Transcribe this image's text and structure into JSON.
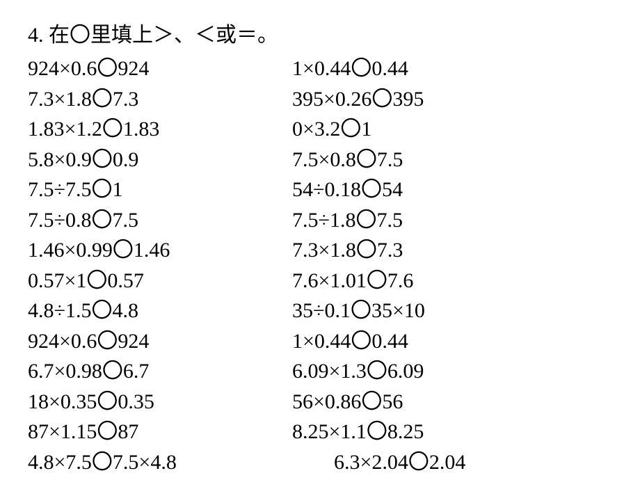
{
  "title": "4. 在〇里填上＞、＜或＝。",
  "circle_glyph": "〇",
  "text_color": "#000000",
  "background_color": "#ffffff",
  "font_family": "SimSun",
  "font_size_pt": 22,
  "rows": [
    {
      "left_a": "924×0.6",
      "left_b": "924",
      "right_a": "1×0.44",
      "right_b": "0.44"
    },
    {
      "left_a": "7.3×1.8",
      "left_b": "7.3",
      "right_a": "395×0.26",
      "right_b": "395"
    },
    {
      "left_a": "1.83×1.2",
      "left_b": "1.83",
      "right_a": "0×3.2",
      "right_b": "1"
    },
    {
      "left_a": "5.8×0.9",
      "left_b": "0.9",
      "right_a": "7.5×0.8",
      "right_b": "7.5"
    },
    {
      "left_a": "7.5÷7.5",
      "left_b": "1",
      "right_a": "54÷0.18",
      "right_b": "54"
    },
    {
      "left_a": "7.5÷0.8",
      "left_b": "7.5",
      "right_a": "7.5÷1.8",
      "right_b": "7.5"
    },
    {
      "left_a": "1.46×0.99",
      "left_b": "1.46",
      "right_a": "7.3×1.8",
      "right_b": "7.3"
    },
    {
      "left_a": "0.57×1",
      "left_b": "0.57",
      "right_a": "7.6×1.01",
      "right_b": "7.6"
    },
    {
      "left_a": "4.8÷1.5",
      "left_b": "4.8",
      "right_a": "35÷0.1",
      "right_b": "35×10"
    },
    {
      "left_a": "924×0.6",
      "left_b": "924",
      "right_a": "1×0.44",
      "right_b": "0.44"
    },
    {
      "left_a": "6.7×0.98",
      "left_b": "6.7",
      "right_a": "6.09×1.3",
      "right_b": "6.09"
    },
    {
      "left_a": "18×0.35",
      "left_b": "0.35",
      "right_a": "56×0.86",
      "right_b": "56"
    },
    {
      "left_a": "87×1.15",
      "left_b": "87",
      "right_a": "8.25×1.1",
      "right_b": "8.25"
    }
  ],
  "last_row": {
    "left_a": "4.8×7.5",
    "left_b": "7.5×4.8",
    "right_a": "6.3×2.04",
    "right_b": "2.04"
  }
}
